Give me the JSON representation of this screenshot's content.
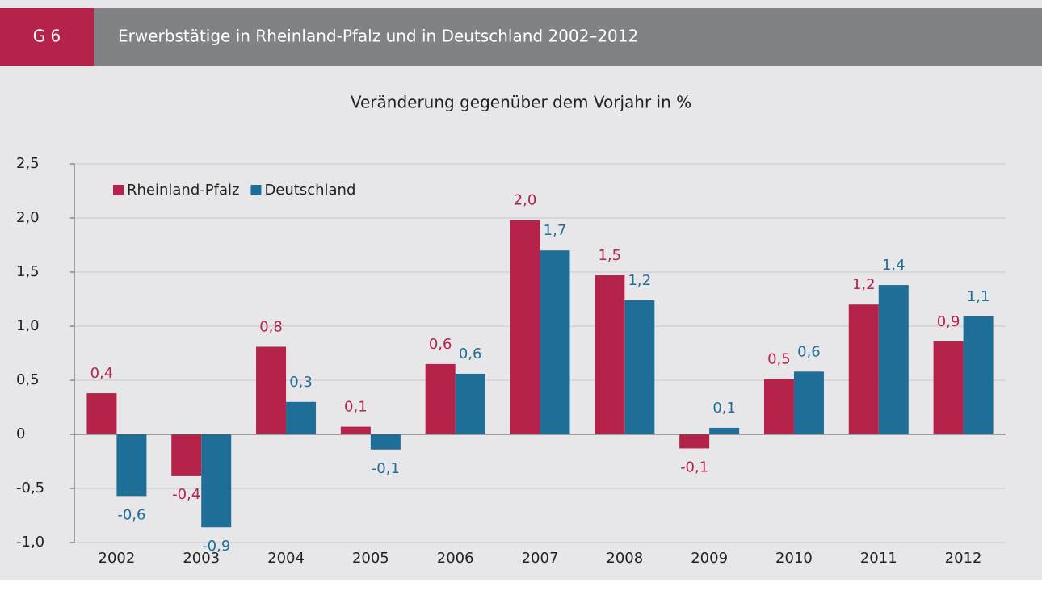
{
  "header": {
    "number": "G 6",
    "title": "Erwerbstätige in Rheinland-Pfalz und in Deutschland 2002–2012"
  },
  "chart_data": {
    "type": "bar",
    "subtitle": "Veränderung gegenüber dem Vorjahr in %",
    "categories": [
      "2002",
      "2003",
      "2004",
      "2005",
      "2006",
      "2007",
      "2008",
      "2009",
      "2010",
      "2011",
      "2012"
    ],
    "series": [
      {
        "name": "Rheinland-Pfalz",
        "color": "#b5224a",
        "values": [
          0.38,
          -0.38,
          0.81,
          0.07,
          0.65,
          1.98,
          1.47,
          -0.13,
          0.51,
          1.2,
          0.86
        ],
        "value_labels": [
          "0,4",
          "-0,4",
          "0,8",
          "0,1",
          "0,6",
          "2,0",
          "1,5",
          "-0,1",
          "0,5",
          "1,2",
          "0,9"
        ]
      },
      {
        "name": "Deutschland",
        "color": "#1f6e97",
        "values": [
          -0.57,
          -0.86,
          0.3,
          -0.14,
          0.56,
          1.7,
          1.24,
          0.06,
          0.58,
          1.38,
          1.09
        ],
        "value_labels": [
          "-0,6",
          "-0,9",
          "0,3",
          "-0,1",
          "0,6",
          "1,7",
          "1,2",
          "0,1",
          "0,6",
          "1,4",
          "1,1"
        ]
      }
    ],
    "ylim": [
      -1.0,
      2.5
    ],
    "yticks": [
      {
        "value": -1.0,
        "label": "-1,0"
      },
      {
        "value": -0.5,
        "label": "-0,5"
      },
      0,
      {
        "value": 0.5,
        "label": "0,5"
      },
      {
        "value": 1.0,
        "label": "1,0"
      },
      {
        "value": 1.5,
        "label": "1,5"
      },
      {
        "value": 2.0,
        "label": "2,0"
      },
      {
        "value": 2.5,
        "label": "2,5"
      }
    ],
    "grid": true,
    "legend": "upper left"
  }
}
